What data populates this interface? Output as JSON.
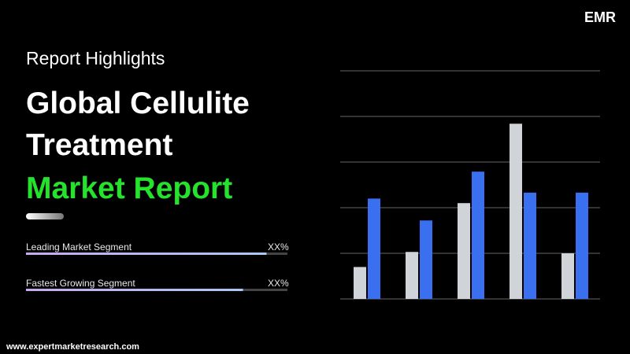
{
  "logo": {
    "text": "EMR"
  },
  "header": {
    "kicker": "Report Highlights",
    "title_lines": [
      "Global Cellulite",
      "Treatment"
    ],
    "highlight": "Market Report"
  },
  "segments": [
    {
      "label": "Leading Market Segment",
      "value_label": "XX%",
      "progress": 92
    },
    {
      "label": "Fastest Growing Segment",
      "value_label": "XX%",
      "progress": 83
    }
  ],
  "progress_max": 100,
  "footer": {
    "url": "www.expertmarketresearch.com"
  },
  "chart_data": {
    "type": "bar",
    "categories": [
      null,
      null,
      null,
      null,
      null
    ],
    "series": [
      {
        "color": "#d0d3d8",
        "values": [
          0.7,
          1.03,
          2.1,
          3.84,
          1.0
        ]
      },
      {
        "color": "#3a6ff0",
        "values": [
          2.2,
          1.72,
          2.79,
          2.33,
          2.33
        ]
      }
    ],
    "ylim": [
      0,
      5
    ],
    "yticks": [
      0,
      1,
      2,
      3,
      4,
      5
    ],
    "grid": true
  }
}
